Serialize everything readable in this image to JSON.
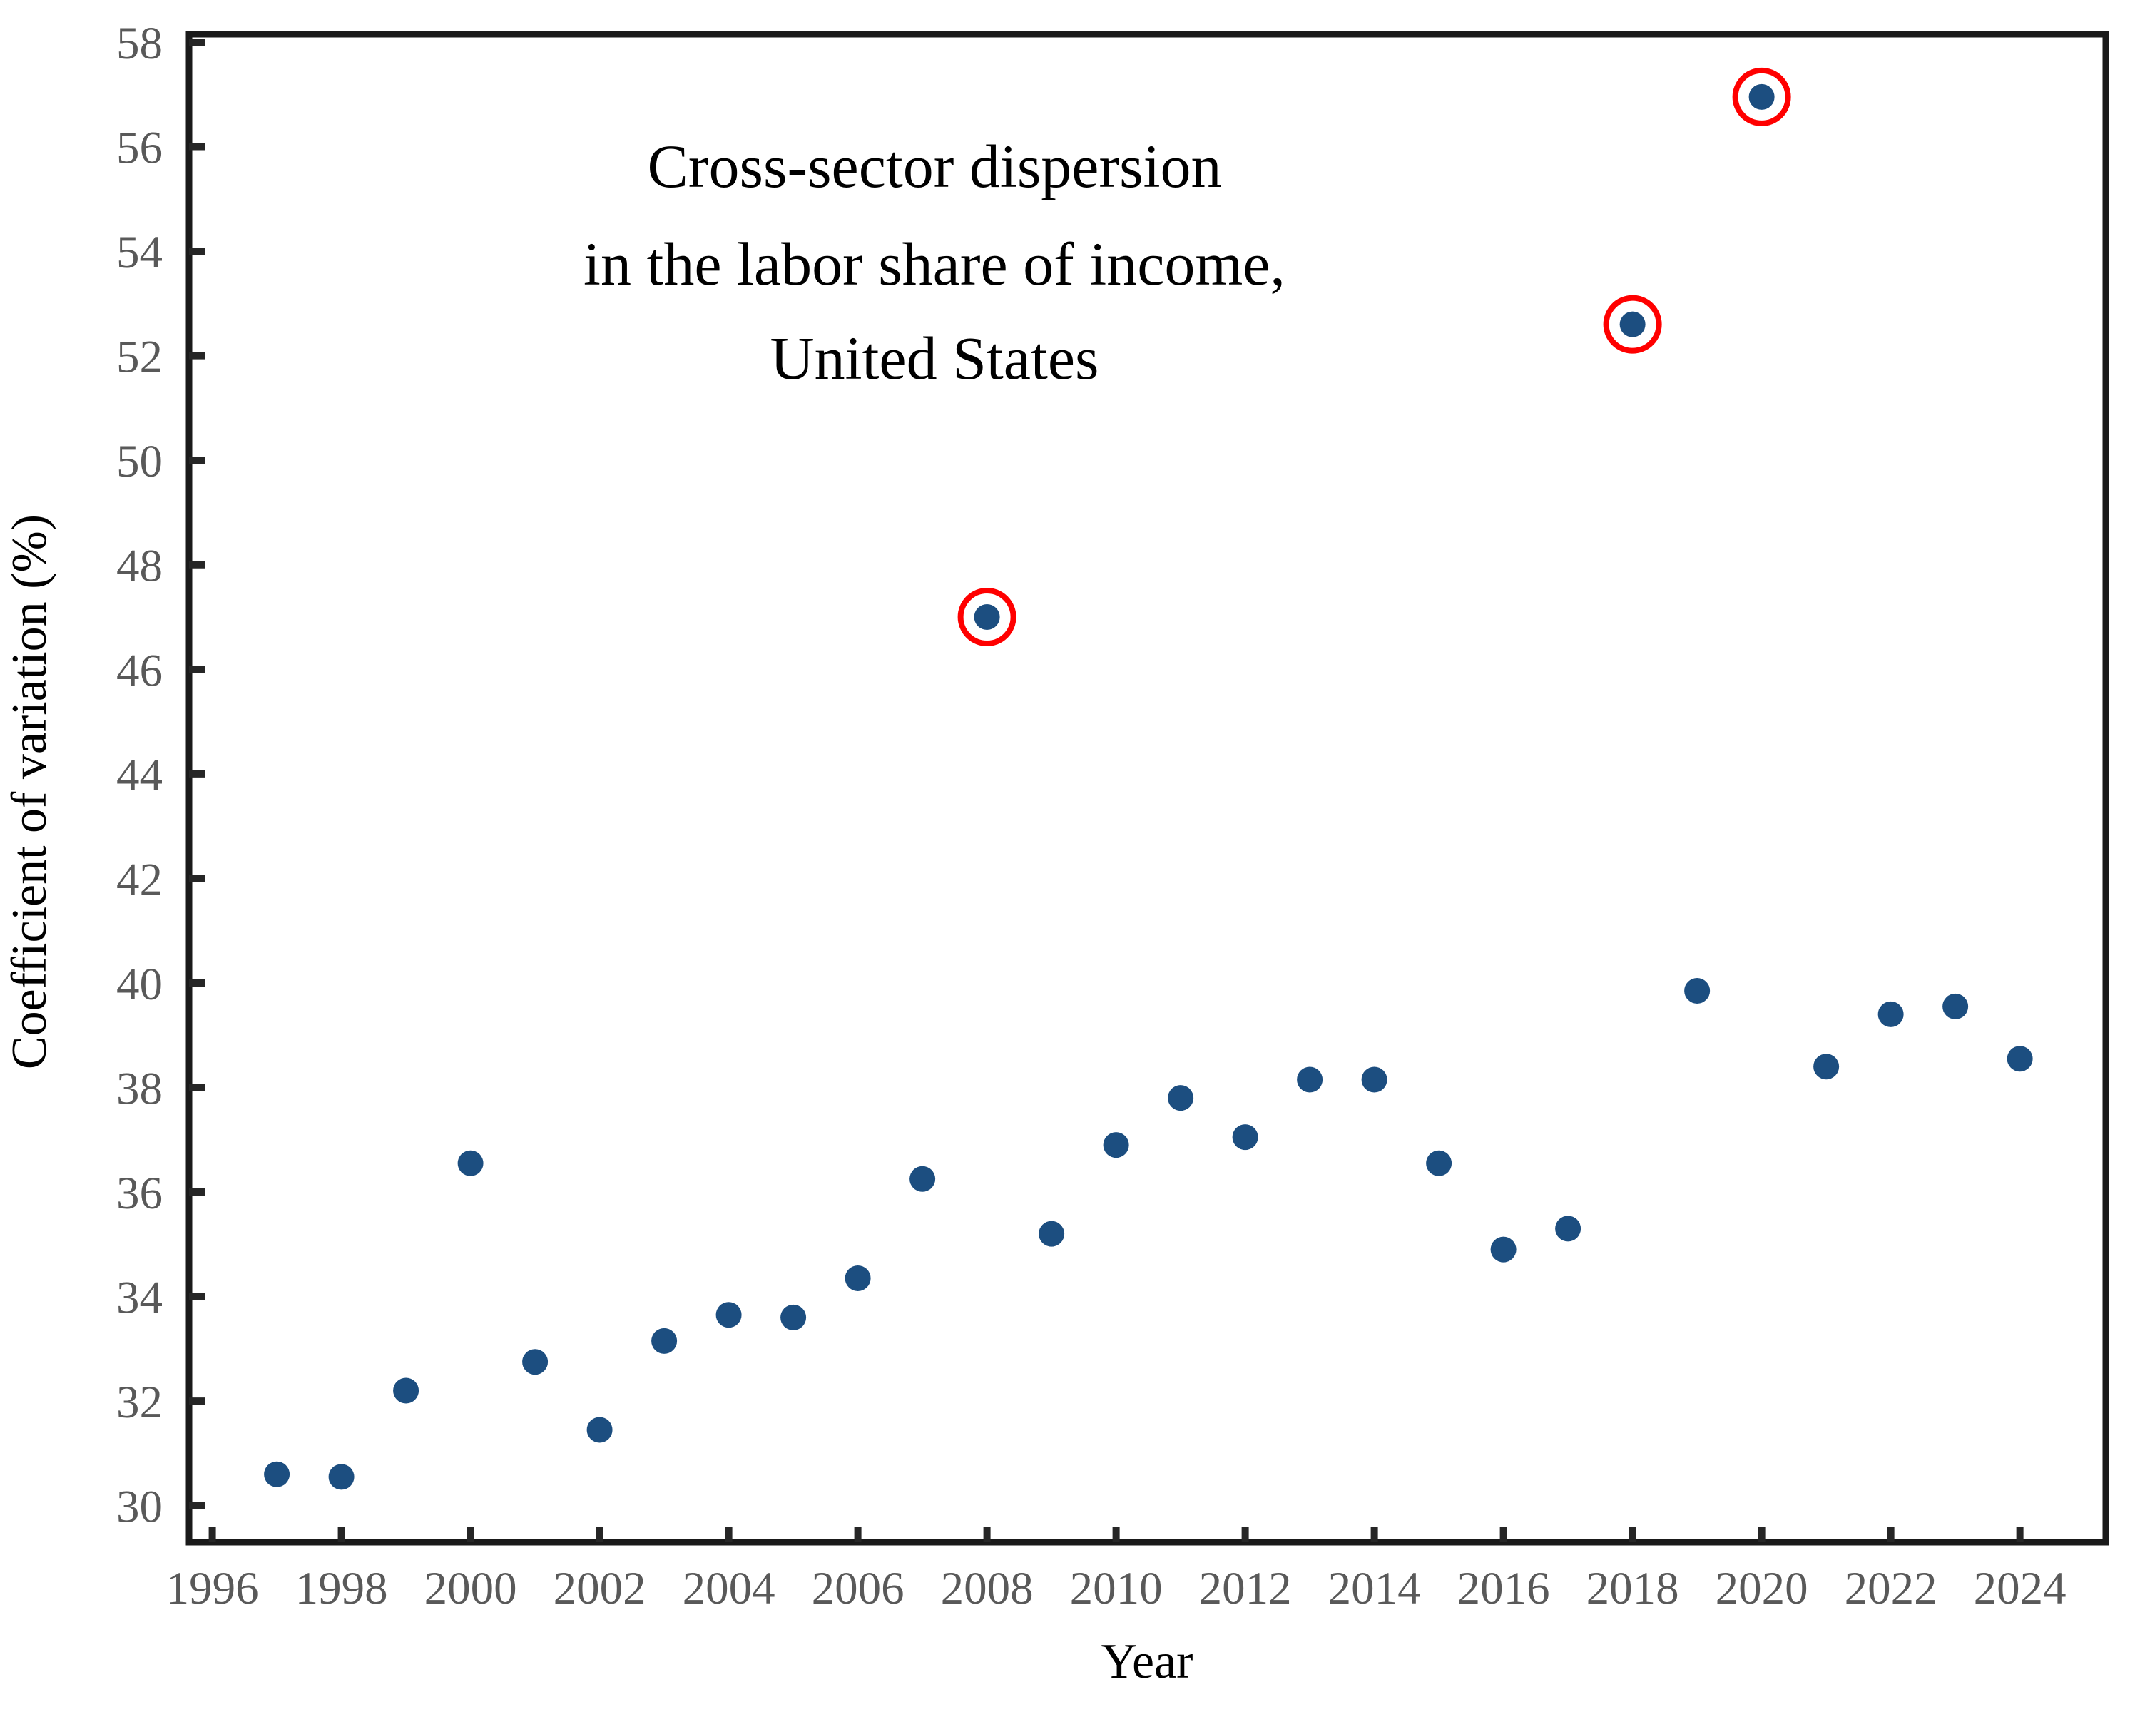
{
  "title": {
    "line1": "Cross-sector dispersion",
    "line2": "in the labor share of income,",
    "line3": "United States"
  },
  "axes": {
    "x": {
      "label": "Year",
      "tick_labels": [
        "1996",
        "1998",
        "2000",
        "2002",
        "2004",
        "2006",
        "2008",
        "2010",
        "2012",
        "2014",
        "2016",
        "2018",
        "2020",
        "2022",
        "2024"
      ]
    },
    "y": {
      "label": "Coefficient of variation (%)",
      "tick_labels": [
        "30",
        "32",
        "34",
        "36",
        "38",
        "40",
        "42",
        "44",
        "46",
        "48",
        "50",
        "52",
        "54",
        "56",
        "58"
      ]
    }
  },
  "colors": {
    "dot": "#1C4E80",
    "highlight_ring": "#FF0000",
    "axis": "#1A1A1A",
    "tick": "#262626",
    "tick_label": "#595959",
    "text": "#000000",
    "background": "#FFFFFF"
  },
  "chart_data": {
    "type": "scatter",
    "title": "Cross-sector dispersion in the labor share of income, United States",
    "xlabel": "Year",
    "ylabel": "Coefficient of variation (%)",
    "xlim": [
      1995.64,
      2025.33
    ],
    "ylim": [
      29.3,
      58.15
    ],
    "x_ticks": [
      1996,
      1998,
      2000,
      2002,
      2004,
      2006,
      2008,
      2010,
      2012,
      2014,
      2016,
      2018,
      2020,
      2022,
      2024
    ],
    "y_ticks": [
      30,
      32,
      34,
      36,
      38,
      40,
      42,
      44,
      46,
      48,
      50,
      52,
      54,
      56,
      58
    ],
    "grid": false,
    "legend": false,
    "marker": "circle",
    "points": [
      {
        "year": 1997,
        "value": 30.6
      },
      {
        "year": 1998,
        "value": 30.55
      },
      {
        "year": 1999,
        "value": 32.2
      },
      {
        "year": 2000,
        "value": 36.55
      },
      {
        "year": 2001,
        "value": 32.75
      },
      {
        "year": 2002,
        "value": 31.45
      },
      {
        "year": 2003,
        "value": 33.15
      },
      {
        "year": 2004,
        "value": 33.65
      },
      {
        "year": 2005,
        "value": 33.6
      },
      {
        "year": 2006,
        "value": 34.35
      },
      {
        "year": 2007,
        "value": 36.25
      },
      {
        "year": 2008,
        "value": 47.0
      },
      {
        "year": 2009,
        "value": 35.2
      },
      {
        "year": 2010,
        "value": 36.9
      },
      {
        "year": 2011,
        "value": 37.8
      },
      {
        "year": 2012,
        "value": 37.05
      },
      {
        "year": 2013,
        "value": 38.15
      },
      {
        "year": 2014,
        "value": 38.15
      },
      {
        "year": 2015,
        "value": 36.55
      },
      {
        "year": 2016,
        "value": 34.9
      },
      {
        "year": 2017,
        "value": 35.3
      },
      {
        "year": 2018,
        "value": 52.6
      },
      {
        "year": 2019,
        "value": 39.85
      },
      {
        "year": 2020,
        "value": 56.95
      },
      {
        "year": 2021,
        "value": 38.4
      },
      {
        "year": 2022,
        "value": 39.4
      },
      {
        "year": 2023,
        "value": 39.55
      },
      {
        "year": 2024,
        "value": 38.55
      }
    ],
    "highlighted_years": [
      2008,
      2018,
      2020
    ],
    "highlight_style": "red circle outline around dot"
  }
}
